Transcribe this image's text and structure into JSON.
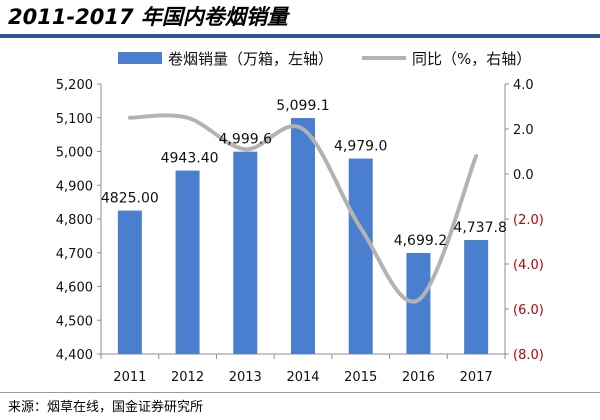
{
  "title": "2011-2017 年国内卷烟销量",
  "source": "来源：烟草在线，国金证券研究所",
  "chart_data": {
    "type": "bar",
    "categories": [
      "2011",
      "2012",
      "2013",
      "2014",
      "2015",
      "2016",
      "2017"
    ],
    "series": [
      {
        "name": "卷烟销量（万箱，左轴）",
        "type": "bar",
        "axis": "left",
        "color": "#4a7fd0",
        "values": [
          4825.0,
          4943.4,
          4999.6,
          5099.1,
          4979.0,
          4699.2,
          4737.8
        ],
        "labels": [
          "4825.00",
          "4943.40",
          "4,999.6",
          "5,099.1",
          "4,979.0",
          "4,699.2",
          "4,737.8"
        ]
      },
      {
        "name": "同比（%，右轴）",
        "type": "line",
        "axis": "right",
        "color": "#b3b3b3",
        "values": [
          2.5,
          2.5,
          1.1,
          2.0,
          -2.4,
          -5.6,
          0.8
        ]
      }
    ],
    "left_axis": {
      "ylim": [
        4400,
        5200
      ],
      "ticks": [
        4400,
        4500,
        4600,
        4700,
        4800,
        4900,
        5000,
        5100,
        5200
      ],
      "tick_labels": [
        "4,400",
        "4,500",
        "4,600",
        "4,700",
        "4,800",
        "4,900",
        "5,000",
        "5,100",
        "5,200"
      ]
    },
    "right_axis": {
      "ylim": [
        -8,
        4
      ],
      "ticks": [
        4,
        2,
        0,
        -2,
        -4,
        -6,
        -8
      ],
      "tick_labels": [
        "4.0",
        "2.0",
        "0.0",
        "(2.0)",
        "(4.0)",
        "(6.0)",
        "(8.0)"
      ],
      "negative_color": "#c00000"
    },
    "legend": "top",
    "grid": false
  }
}
